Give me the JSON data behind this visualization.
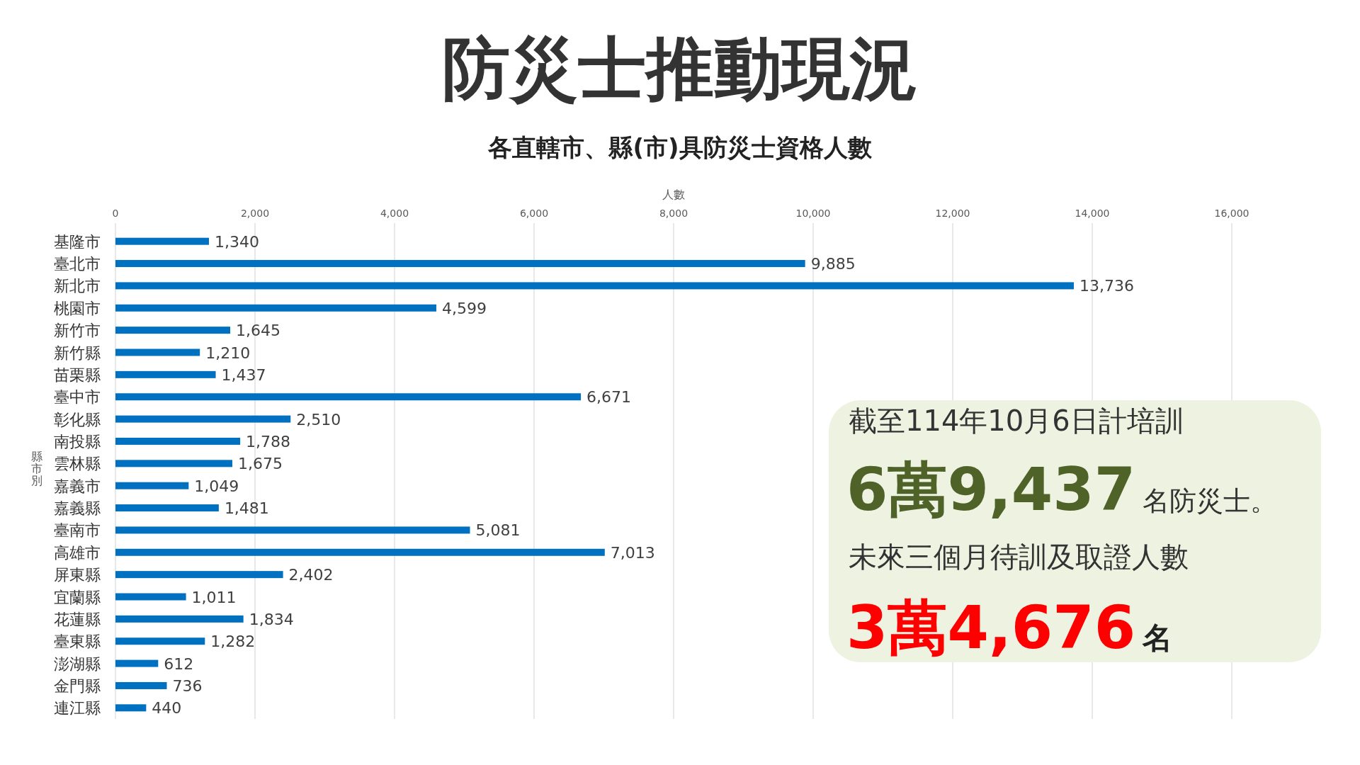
{
  "chart_data": {
    "type": "bar",
    "orientation": "horizontal",
    "title": "防災士推動現況",
    "subtitle": "各直轄市、縣(市)具防災士資格人數",
    "xlabel": "人數",
    "ylabel": "縣市別",
    "categories": [
      "基隆市",
      "臺北市",
      "新北市",
      "桃園市",
      "新竹市",
      "新竹縣",
      "苗栗縣",
      "臺中市",
      "彰化縣",
      "南投縣",
      "雲林縣",
      "嘉義市",
      "嘉義縣",
      "臺南市",
      "高雄市",
      "屏東縣",
      "宜蘭縣",
      "花蓮縣",
      "臺東縣",
      "澎湖縣",
      "金門縣",
      "連江縣"
    ],
    "values": [
      1340,
      9885,
      13736,
      4599,
      1645,
      1210,
      1437,
      6671,
      2510,
      1788,
      1675,
      1049,
      1481,
      5081,
      7013,
      2402,
      1011,
      1834,
      1282,
      612,
      736,
      440
    ],
    "color": "#0070c0",
    "xlim": [
      0,
      16000
    ],
    "xticks": [
      {
        "value": 0,
        "label": "0"
      },
      {
        "value": 2000,
        "label": "2,000"
      },
      {
        "value": 4000,
        "label": "4,000"
      },
      {
        "value": 6000,
        "label": "6,000"
      },
      {
        "value": 8000,
        "label": "8,000"
      },
      {
        "value": 10000,
        "label": "10,000"
      },
      {
        "value": 12000,
        "label": "12,000"
      },
      {
        "value": 14000,
        "label": "14,000"
      },
      {
        "value": 16000,
        "label": "16,000"
      }
    ],
    "grid": "x",
    "value_labels": [
      "1,340",
      "9,885",
      "13,736",
      "4,599",
      "1,645",
      "1,210",
      "1,437",
      "6,671",
      "2,510",
      "1,788",
      "1,675",
      "1,049",
      "1,481",
      "5,081",
      "7,013",
      "2,402",
      "1,011",
      "1,834",
      "1,282",
      "612",
      "736",
      "440"
    ],
    "annotations": [
      "截至114年10月6日計培訓",
      "6萬9,437",
      "名防災士。",
      "未來三個月待訓及取證人數",
      "3萬4,676",
      "名"
    ]
  }
}
